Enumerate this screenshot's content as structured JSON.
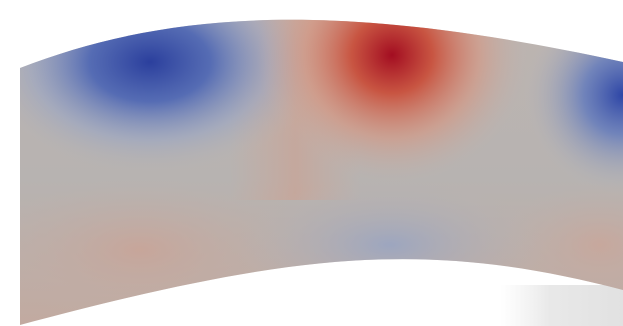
{
  "view": {
    "type": "scalar-field-render",
    "colormap": "cool-to-warm",
    "colors": {
      "background": "#ffffff",
      "neutral": "#b8b1ad",
      "low_extreme": "#2a3f9e",
      "high_extreme": "#a30d21",
      "edge_shadow": "#e4e4e4"
    }
  }
}
